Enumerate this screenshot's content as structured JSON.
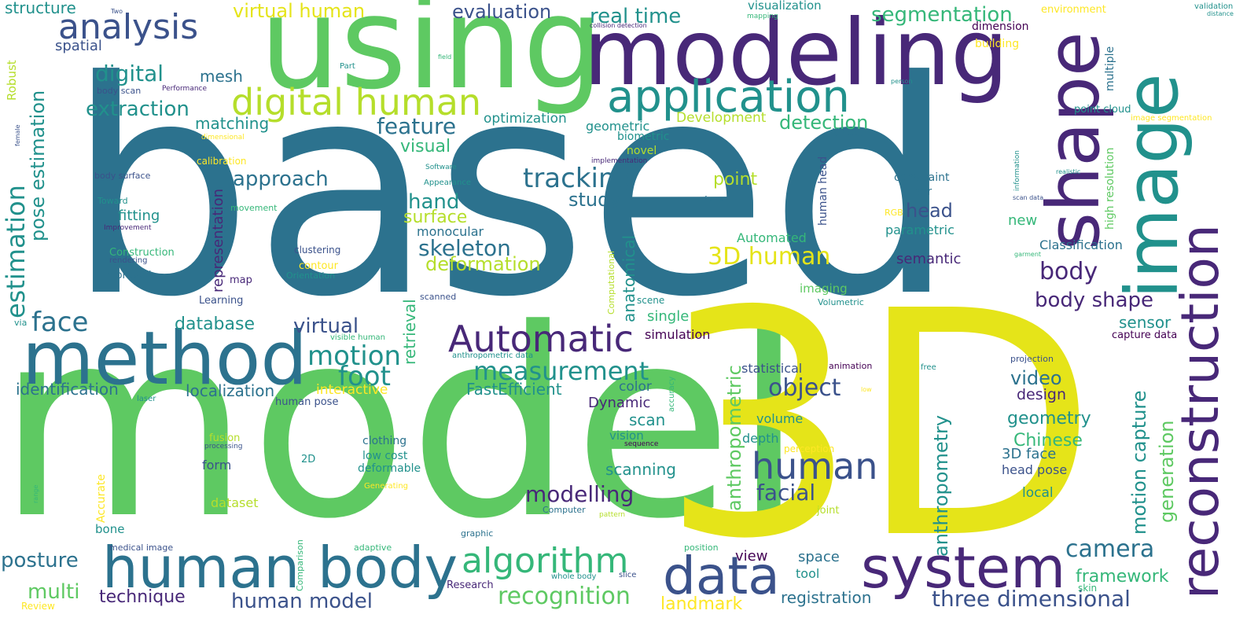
{
  "cloud": {
    "colors": {
      "c0": "#440154",
      "c1": "#3b528b",
      "c2": "#21918c",
      "c3": "#5ec962",
      "c4": "#b5de2b",
      "c5": "#fde725",
      "c6": "#2c728e",
      "c7": "#35b779",
      "c8": "#482878",
      "c9": "#e5e419"
    },
    "words": [
      {
        "text": "based",
        "color": "c6"
      },
      {
        "text": "model",
        "color": "c3"
      },
      {
        "text": "3D",
        "color": "c9"
      },
      {
        "text": "using",
        "color": "c3"
      },
      {
        "text": "modeling",
        "color": "c8"
      },
      {
        "text": "image",
        "color": "c2"
      },
      {
        "text": "shape",
        "color": "c8"
      },
      {
        "text": "reconstruction",
        "color": "c8"
      },
      {
        "text": "method",
        "color": "c6"
      },
      {
        "text": "human body",
        "color": "c6"
      },
      {
        "text": "system",
        "color": "c8"
      },
      {
        "text": "data",
        "color": "c1"
      },
      {
        "text": "application",
        "color": "c2"
      },
      {
        "text": "digital human",
        "color": "c4"
      },
      {
        "text": "Automatic",
        "color": "c8"
      },
      {
        "text": "analysis",
        "color": "c1"
      },
      {
        "text": "human",
        "color": "c1"
      },
      {
        "text": "algorithm",
        "color": "c7"
      },
      {
        "text": "tracking",
        "color": "c6"
      },
      {
        "text": "measurement",
        "color": "c2"
      },
      {
        "text": "estimation",
        "color": "c2"
      },
      {
        "text": "motion",
        "color": "c2"
      },
      {
        "text": "foot",
        "color": "c2"
      },
      {
        "text": "face",
        "color": "c6"
      },
      {
        "text": "3D human",
        "color": "c9"
      },
      {
        "text": "skeleton",
        "color": "c6"
      },
      {
        "text": "modelling",
        "color": "c8"
      },
      {
        "text": "recognition",
        "color": "c3"
      },
      {
        "text": "three dimensional",
        "color": "c1"
      },
      {
        "text": "camera",
        "color": "c6"
      },
      {
        "text": "object",
        "color": "c1"
      },
      {
        "text": "facial",
        "color": "c1"
      },
      {
        "text": "body",
        "color": "c8"
      },
      {
        "text": "head",
        "color": "c1"
      },
      {
        "text": "body shape",
        "color": "c8"
      },
      {
        "text": "feature",
        "color": "c6"
      },
      {
        "text": "extraction",
        "color": "c2"
      },
      {
        "text": "digital",
        "color": "c2"
      },
      {
        "text": "pose estimation",
        "color": "c2"
      },
      {
        "text": "real time",
        "color": "c2"
      },
      {
        "text": "segmentation",
        "color": "c7"
      },
      {
        "text": "evaluation",
        "color": "c1"
      },
      {
        "text": "virtual human",
        "color": "c9"
      },
      {
        "text": "detection",
        "color": "c7"
      },
      {
        "text": "approach",
        "color": "c6"
      },
      {
        "text": "hand",
        "color": "c2"
      },
      {
        "text": "deformation",
        "color": "c4"
      },
      {
        "text": "surface",
        "color": "c4"
      },
      {
        "text": "human model",
        "color": "c1"
      },
      {
        "text": "database",
        "color": "c2"
      },
      {
        "text": "virtual",
        "color": "c1"
      },
      {
        "text": "identification",
        "color": "c6"
      },
      {
        "text": "localization",
        "color": "c6"
      },
      {
        "text": "posture",
        "color": "c6"
      },
      {
        "text": "multi",
        "color": "c3"
      },
      {
        "text": "technique",
        "color": "c8"
      },
      {
        "text": "anthropometric",
        "color": "c3"
      },
      {
        "text": "anthropometry",
        "color": "c2"
      },
      {
        "text": "motion capture",
        "color": "c2"
      },
      {
        "text": "generation",
        "color": "c3"
      },
      {
        "text": "video",
        "color": "c6"
      },
      {
        "text": "geometry",
        "color": "c2"
      },
      {
        "text": "Chinese",
        "color": "c7"
      },
      {
        "text": "framework",
        "color": "c7"
      },
      {
        "text": "landmark",
        "color": "c5"
      },
      {
        "text": "registration",
        "color": "c6"
      },
      {
        "text": "study",
        "color": "c6"
      },
      {
        "text": "point",
        "color": "c4"
      },
      {
        "text": "matching",
        "color": "c2"
      },
      {
        "text": "mesh",
        "color": "c6"
      },
      {
        "text": "structure",
        "color": "c2"
      },
      {
        "text": "spatial",
        "color": "c1"
      },
      {
        "text": "visual",
        "color": "c7"
      },
      {
        "text": "scanning",
        "color": "c2"
      },
      {
        "text": "scan",
        "color": "c2"
      },
      {
        "text": "fitting",
        "color": "c2"
      },
      {
        "text": "sensor",
        "color": "c2"
      },
      {
        "text": "representation",
        "color": "c8"
      },
      {
        "text": "retrieval",
        "color": "c7"
      },
      {
        "text": "anatomical",
        "color": "c2"
      },
      {
        "text": "FastEfficient",
        "color": "c2"
      },
      {
        "text": "Dynamic",
        "color": "c8"
      },
      {
        "text": "color",
        "color": "c6"
      },
      {
        "text": "interactive",
        "color": "c5"
      },
      {
        "text": "design",
        "color": "c8"
      },
      {
        "text": "3D face",
        "color": "c6"
      },
      {
        "text": "head pose",
        "color": "c1"
      },
      {
        "text": "local",
        "color": "c2"
      },
      {
        "text": "monocular",
        "color": "c6"
      },
      {
        "text": "optimization",
        "color": "c2"
      },
      {
        "text": "geometric",
        "color": "c2"
      },
      {
        "text": "Development",
        "color": "c4"
      },
      {
        "text": "biometric",
        "color": "c2"
      },
      {
        "text": "novel",
        "color": "c4"
      },
      {
        "text": "parametric",
        "color": "c2"
      },
      {
        "text": "semantic",
        "color": "c8"
      },
      {
        "text": "new",
        "color": "c7"
      },
      {
        "text": "constraint",
        "color": "c6"
      },
      {
        "text": "hair",
        "color": "c6"
      },
      {
        "text": "Classification",
        "color": "c6"
      },
      {
        "text": "statistical",
        "color": "c1"
      },
      {
        "text": "volume",
        "color": "c2"
      },
      {
        "text": "depth",
        "color": "c2"
      },
      {
        "text": "single",
        "color": "c7"
      },
      {
        "text": "simulation",
        "color": "c0"
      },
      {
        "text": "vision",
        "color": "c2"
      },
      {
        "text": "form",
        "color": "c1"
      },
      {
        "text": "dataset",
        "color": "c4"
      },
      {
        "text": "bone",
        "color": "c2"
      },
      {
        "text": "clothing",
        "color": "c6"
      },
      {
        "text": "low cost",
        "color": "c2"
      },
      {
        "text": "deformable",
        "color": "c2"
      },
      {
        "text": "Automated",
        "color": "c7"
      },
      {
        "text": "human head",
        "color": "c1"
      },
      {
        "text": "imaging",
        "color": "c3"
      },
      {
        "text": "view",
        "color": "c0"
      },
      {
        "text": "space",
        "color": "c6"
      },
      {
        "text": "tool",
        "color": "c2"
      },
      {
        "text": "high resolution",
        "color": "c3"
      },
      {
        "text": "multiple",
        "color": "c6"
      },
      {
        "text": "dimension",
        "color": "c0"
      },
      {
        "text": "visualization",
        "color": "c2"
      },
      {
        "text": "building",
        "color": "c5"
      },
      {
        "text": "environment",
        "color": "c5"
      },
      {
        "text": "point cloud",
        "color": "c2"
      },
      {
        "text": "Kinect",
        "color": "c6"
      },
      {
        "text": "capture data",
        "color": "c0"
      },
      {
        "text": "projection",
        "color": "c1"
      },
      {
        "text": "Robust",
        "color": "c4"
      },
      {
        "text": "Construction",
        "color": "c7"
      },
      {
        "text": "improved",
        "color": "c6"
      },
      {
        "text": "contour",
        "color": "c5"
      },
      {
        "text": "clustering",
        "color": "c1"
      },
      {
        "text": "map",
        "color": "c8"
      },
      {
        "text": "Learning",
        "color": "c1"
      },
      {
        "text": "calibration",
        "color": "c5"
      },
      {
        "text": "Accurate",
        "color": "c5"
      },
      {
        "text": "2D",
        "color": "c2"
      },
      {
        "text": "fusion",
        "color": "c4"
      },
      {
        "text": "RGB",
        "color": "c5"
      },
      {
        "text": "perception",
        "color": "c5"
      },
      {
        "text": "animation",
        "color": "c0"
      },
      {
        "text": "Volumetric",
        "color": "c2"
      },
      {
        "text": "movement",
        "color": "c7"
      },
      {
        "text": "Orientation",
        "color": "c2"
      },
      {
        "text": "Computational",
        "color": "c4"
      },
      {
        "text": "accuracy",
        "color": "c7"
      },
      {
        "text": "scene",
        "color": "c2"
      },
      {
        "text": "human pose",
        "color": "c1"
      },
      {
        "text": "medical image",
        "color": "c1"
      },
      {
        "text": "adaptive",
        "color": "c7"
      },
      {
        "text": "Comparison",
        "color": "c7"
      },
      {
        "text": "Research",
        "color": "c8"
      },
      {
        "text": "whole body",
        "color": "c2"
      },
      {
        "text": "position",
        "color": "c7"
      },
      {
        "text": "slice",
        "color": "c1"
      },
      {
        "text": "skin",
        "color": "c7"
      },
      {
        "text": "Review",
        "color": "c5"
      },
      {
        "text": "graphic",
        "color": "c6"
      },
      {
        "text": "joint",
        "color": "c4"
      },
      {
        "text": "pattern",
        "color": "c4"
      },
      {
        "text": "Computer",
        "color": "c6"
      },
      {
        "text": "Generating",
        "color": "c5"
      },
      {
        "text": "sequence",
        "color": "c0"
      },
      {
        "text": "processing",
        "color": "c1"
      },
      {
        "text": "laser",
        "color": "c2"
      },
      {
        "text": "anthropometric data",
        "color": "c2"
      },
      {
        "text": "visible human",
        "color": "c7"
      },
      {
        "text": "free",
        "color": "c2"
      },
      {
        "text": "low",
        "color": "c5"
      },
      {
        "text": "via",
        "color": "c2"
      },
      {
        "text": "range",
        "color": "c7"
      },
      {
        "text": "scanned",
        "color": "c1"
      },
      {
        "text": "body surface",
        "color": "c1"
      },
      {
        "text": "Toward",
        "color": "c2"
      },
      {
        "text": "Improvement",
        "color": "c8"
      },
      {
        "text": "rendering",
        "color": "c1"
      },
      {
        "text": "dimensional",
        "color": "c5"
      },
      {
        "text": "female",
        "color": "c1"
      },
      {
        "text": "Two",
        "color": "c1"
      },
      {
        "text": "body scan",
        "color": "c1"
      },
      {
        "text": "Performance",
        "color": "c8"
      },
      {
        "text": "Part",
        "color": "c2"
      },
      {
        "text": "field",
        "color": "c7"
      },
      {
        "text": "collision detection",
        "color": "c8"
      },
      {
        "text": "mapping",
        "color": "c7"
      },
      {
        "text": "implementation",
        "color": "c8"
      },
      {
        "text": "Software",
        "color": "c2"
      },
      {
        "text": "Appearance",
        "color": "c2"
      },
      {
        "text": "frame",
        "color": "c6"
      },
      {
        "text": "person",
        "color": "c2"
      },
      {
        "text": "information",
        "color": "c2"
      },
      {
        "text": "scan data",
        "color": "c1"
      },
      {
        "text": "realistic",
        "color": "c2"
      },
      {
        "text": "garment",
        "color": "c7"
      },
      {
        "text": "validation",
        "color": "c2"
      },
      {
        "text": "distance",
        "color": "c2"
      },
      {
        "text": "image segmentation",
        "color": "c5"
      }
    ]
  }
}
